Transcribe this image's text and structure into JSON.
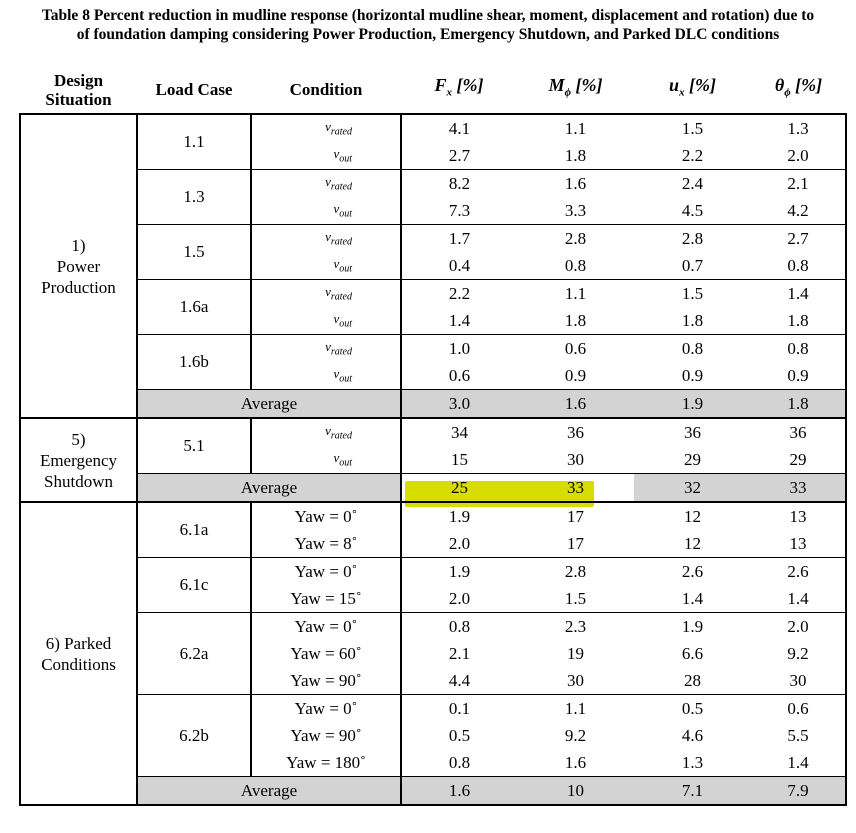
{
  "caption_line1": "Table 8 Percent reduction in mudline response (horizontal mudline shear, moment, displacement and rotation) due to",
  "caption_line2": "of foundation damping considering Power Production, Emergency Shutdown, and Parked DLC conditions",
  "headers": {
    "design_situation_1": "Design",
    "design_situation_2": "Situation",
    "load_case": "Load Case",
    "condition": "Condition",
    "fx": "F",
    "fx_sub": "x",
    "fx_unit": " [%]",
    "m": "M",
    "m_sub": "ϕ",
    "m_unit": " [%]",
    "u": "u",
    "u_sub": "x",
    "u_unit": " [%]",
    "theta": "θ",
    "theta_sub": "ϕ",
    "theta_unit": " [%]"
  },
  "sections": {
    "power": {
      "name_1": "1)",
      "name_2": "Power",
      "name_3": "Production",
      "cases": [
        {
          "lc": "1.1",
          "rows": [
            {
              "cond": "v",
              "sub": "rated",
              "fx": "4.1",
              "m": "1.1",
              "u": "1.5",
              "t": "1.3"
            },
            {
              "cond": "v",
              "sub": "out",
              "fx": "2.7",
              "m": "1.8",
              "u": "2.2",
              "t": "2.0"
            }
          ]
        },
        {
          "lc": "1.3",
          "rows": [
            {
              "cond": "v",
              "sub": "rated",
              "fx": "8.2",
              "m": "1.6",
              "u": "2.4",
              "t": "2.1"
            },
            {
              "cond": "v",
              "sub": "out",
              "fx": "7.3",
              "m": "3.3",
              "u": "4.5",
              "t": "4.2"
            }
          ]
        },
        {
          "lc": "1.5",
          "rows": [
            {
              "cond": "v",
              "sub": "rated",
              "fx": "1.7",
              "m": "2.8",
              "u": "2.8",
              "t": "2.7"
            },
            {
              "cond": "v",
              "sub": "out",
              "fx": "0.4",
              "m": "0.8",
              "u": "0.7",
              "t": "0.8"
            }
          ]
        },
        {
          "lc": "1.6a",
          "rows": [
            {
              "cond": "v",
              "sub": "rated",
              "fx": "2.2",
              "m": "1.1",
              "u": "1.5",
              "t": "1.4"
            },
            {
              "cond": "v",
              "sub": "out",
              "fx": "1.4",
              "m": "1.8",
              "u": "1.8",
              "t": "1.8"
            }
          ]
        },
        {
          "lc": "1.6b",
          "rows": [
            {
              "cond": "v",
              "sub": "rated",
              "fx": "1.0",
              "m": "0.6",
              "u": "0.8",
              "t": "0.8"
            },
            {
              "cond": "v",
              "sub": "out",
              "fx": "0.6",
              "m": "0.9",
              "u": "0.9",
              "t": "0.9"
            }
          ]
        }
      ],
      "average": {
        "label": "Average",
        "fx": "3.0",
        "m": "1.6",
        "u": "1.9",
        "t": "1.8"
      }
    },
    "emergency": {
      "name_1": "5)",
      "name_2": "Emergency",
      "name_3": "Shutdown",
      "cases": [
        {
          "lc": "5.1",
          "rows": [
            {
              "cond": "v",
              "sub": "rated",
              "fx": "34",
              "m": "36",
              "u": "36",
              "t": "36"
            },
            {
              "cond": "v",
              "sub": "out",
              "fx": "15",
              "m": "30",
              "u": "29",
              "t": "29"
            }
          ]
        }
      ],
      "average": {
        "label": "Average",
        "fx": "25",
        "m": "33",
        "u": "32",
        "t": "33"
      },
      "highlight_color": "#d8dd00"
    },
    "parked": {
      "name_1": "6) Parked",
      "name_2": "Conditions",
      "cases": [
        {
          "lc": "6.1a",
          "rows": [
            {
              "cond": "Yaw = 0˚",
              "fx": "1.9",
              "m": "17",
              "u": "12",
              "t": "13"
            },
            {
              "cond": "Yaw = 8˚",
              "fx": "2.0",
              "m": "17",
              "u": "12",
              "t": "13"
            }
          ]
        },
        {
          "lc": "6.1c",
          "rows": [
            {
              "cond": "Yaw = 0˚",
              "fx": "1.9",
              "m": "2.8",
              "u": "2.6",
              "t": "2.6"
            },
            {
              "cond": "Yaw = 15˚",
              "fx": "2.0",
              "m": "1.5",
              "u": "1.4",
              "t": "1.4"
            }
          ]
        },
        {
          "lc": "6.2a",
          "rows": [
            {
              "cond": "Yaw = 0˚",
              "fx": "0.8",
              "m": "2.3",
              "u": "1.9",
              "t": "2.0"
            },
            {
              "cond": "Yaw = 60˚",
              "fx": "2.1",
              "m": "19",
              "u": "6.6",
              "t": "9.2"
            },
            {
              "cond": "Yaw = 90˚",
              "fx": "4.4",
              "m": "30",
              "u": "28",
              "t": "30"
            }
          ]
        },
        {
          "lc": "6.2b",
          "rows": [
            {
              "cond": "Yaw = 0˚",
              "fx": "0.1",
              "m": "1.1",
              "u": "0.5",
              "t": "0.6"
            },
            {
              "cond": "Yaw = 90˚",
              "fx": "0.5",
              "m": "9.2",
              "u": "4.6",
              "t": "5.5"
            },
            {
              "cond": "Yaw = 180˚",
              "fx": "0.8",
              "m": "1.6",
              "u": "1.3",
              "t": "1.4"
            }
          ]
        }
      ],
      "average": {
        "label": "Average",
        "fx": "1.6",
        "m": "10",
        "u": "7.1",
        "t": "7.9"
      }
    }
  }
}
